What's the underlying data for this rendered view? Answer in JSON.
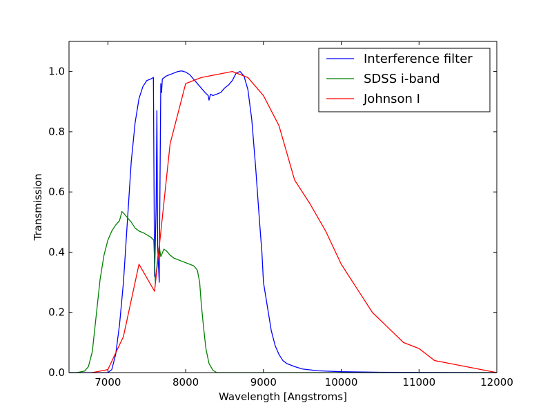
{
  "chart_data": {
    "type": "line",
    "title": "",
    "xlabel": "Wavelength [Angstroms]",
    "ylabel": "Transmission",
    "xlim": [
      6500,
      12000
    ],
    "ylim": [
      0.0,
      1.1
    ],
    "xticks": [
      7000,
      8000,
      9000,
      10000,
      11000,
      12000
    ],
    "yticks": [
      0.0,
      0.2,
      0.4,
      0.6,
      0.8,
      1.0
    ],
    "xtick_labels": [
      "7000",
      "8000",
      "9000",
      "10000",
      "11000",
      "12000"
    ],
    "ytick_labels": [
      "0.0",
      "0.2",
      "0.4",
      "0.6",
      "0.8",
      "1.0"
    ],
    "grid": false,
    "legend_position": "top-right",
    "series": [
      {
        "name": "Interference filter",
        "color": "#0000ff",
        "points": [
          [
            6500,
            0.0
          ],
          [
            7000,
            0.0
          ],
          [
            7050,
            0.01
          ],
          [
            7100,
            0.06
          ],
          [
            7150,
            0.16
          ],
          [
            7200,
            0.3
          ],
          [
            7250,
            0.5
          ],
          [
            7300,
            0.7
          ],
          [
            7350,
            0.83
          ],
          [
            7400,
            0.91
          ],
          [
            7450,
            0.95
          ],
          [
            7500,
            0.97
          ],
          [
            7550,
            0.975
          ],
          [
            7585,
            0.98
          ],
          [
            7600,
            0.32
          ],
          [
            7620,
            0.55
          ],
          [
            7630,
            0.87
          ],
          [
            7640,
            0.42
          ],
          [
            7660,
            0.3
          ],
          [
            7680,
            0.96
          ],
          [
            7690,
            0.93
          ],
          [
            7700,
            0.975
          ],
          [
            7750,
            0.985
          ],
          [
            7800,
            0.99
          ],
          [
            7850,
            0.995
          ],
          [
            7900,
            1.0
          ],
          [
            7950,
            1.002
          ],
          [
            8000,
            0.998
          ],
          [
            8050,
            0.99
          ],
          [
            8100,
            0.975
          ],
          [
            8150,
            0.96
          ],
          [
            8200,
            0.945
          ],
          [
            8250,
            0.93
          ],
          [
            8290,
            0.92
          ],
          [
            8300,
            0.905
          ],
          [
            8320,
            0.925
          ],
          [
            8350,
            0.92
          ],
          [
            8400,
            0.925
          ],
          [
            8450,
            0.93
          ],
          [
            8500,
            0.945
          ],
          [
            8550,
            0.955
          ],
          [
            8600,
            0.97
          ],
          [
            8650,
            0.995
          ],
          [
            8700,
            1.0
          ],
          [
            8750,
            0.985
          ],
          [
            8800,
            0.94
          ],
          [
            8850,
            0.84
          ],
          [
            8900,
            0.68
          ],
          [
            8950,
            0.5
          ],
          [
            8980,
            0.4
          ],
          [
            9000,
            0.3
          ],
          [
            9050,
            0.22
          ],
          [
            9100,
            0.14
          ],
          [
            9150,
            0.09
          ],
          [
            9200,
            0.06
          ],
          [
            9250,
            0.04
          ],
          [
            9300,
            0.03
          ],
          [
            9400,
            0.02
          ],
          [
            9500,
            0.012
          ],
          [
            9700,
            0.006
          ],
          [
            10000,
            0.003
          ],
          [
            10500,
            0.001
          ],
          [
            12000,
            0.0
          ]
        ]
      },
      {
        "name": "SDSS i-band",
        "color": "#008000",
        "points": [
          [
            6500,
            0.0
          ],
          [
            6600,
            0.0
          ],
          [
            6700,
            0.005
          ],
          [
            6750,
            0.02
          ],
          [
            6800,
            0.07
          ],
          [
            6850,
            0.19
          ],
          [
            6900,
            0.31
          ],
          [
            6950,
            0.39
          ],
          [
            7000,
            0.44
          ],
          [
            7050,
            0.47
          ],
          [
            7100,
            0.49
          ],
          [
            7150,
            0.505
          ],
          [
            7180,
            0.535
          ],
          [
            7200,
            0.53
          ],
          [
            7250,
            0.515
          ],
          [
            7300,
            0.5
          ],
          [
            7350,
            0.48
          ],
          [
            7400,
            0.47
          ],
          [
            7450,
            0.465
          ],
          [
            7500,
            0.458
          ],
          [
            7550,
            0.45
          ],
          [
            7590,
            0.44
          ],
          [
            7610,
            0.3
          ],
          [
            7640,
            0.38
          ],
          [
            7660,
            0.42
          ],
          [
            7680,
            0.385
          ],
          [
            7720,
            0.41
          ],
          [
            7750,
            0.405
          ],
          [
            7800,
            0.39
          ],
          [
            7850,
            0.38
          ],
          [
            7900,
            0.375
          ],
          [
            7950,
            0.37
          ],
          [
            8000,
            0.365
          ],
          [
            8050,
            0.36
          ],
          [
            8100,
            0.355
          ],
          [
            8120,
            0.35
          ],
          [
            8150,
            0.34
          ],
          [
            8180,
            0.3
          ],
          [
            8200,
            0.23
          ],
          [
            8230,
            0.15
          ],
          [
            8260,
            0.08
          ],
          [
            8300,
            0.03
          ],
          [
            8350,
            0.008
          ],
          [
            8400,
            0.0
          ],
          [
            12000,
            0.0
          ]
        ]
      },
      {
        "name": "Johnson I",
        "color": "#ff0000",
        "points": [
          [
            6800,
            0.0
          ],
          [
            7000,
            0.01
          ],
          [
            7200,
            0.12
          ],
          [
            7400,
            0.36
          ],
          [
            7600,
            0.27
          ],
          [
            7800,
            0.76
          ],
          [
            8000,
            0.96
          ],
          [
            8200,
            0.98
          ],
          [
            8400,
            0.99
          ],
          [
            8600,
            1.0
          ],
          [
            8800,
            0.98
          ],
          [
            9000,
            0.92
          ],
          [
            9200,
            0.82
          ],
          [
            9400,
            0.64
          ],
          [
            9600,
            0.56
          ],
          [
            9800,
            0.47
          ],
          [
            10000,
            0.36
          ],
          [
            10200,
            0.28
          ],
          [
            10400,
            0.2
          ],
          [
            10600,
            0.15
          ],
          [
            10800,
            0.1
          ],
          [
            11000,
            0.08
          ],
          [
            11200,
            0.04
          ],
          [
            11400,
            0.03
          ],
          [
            12000,
            0.0
          ]
        ]
      }
    ]
  }
}
